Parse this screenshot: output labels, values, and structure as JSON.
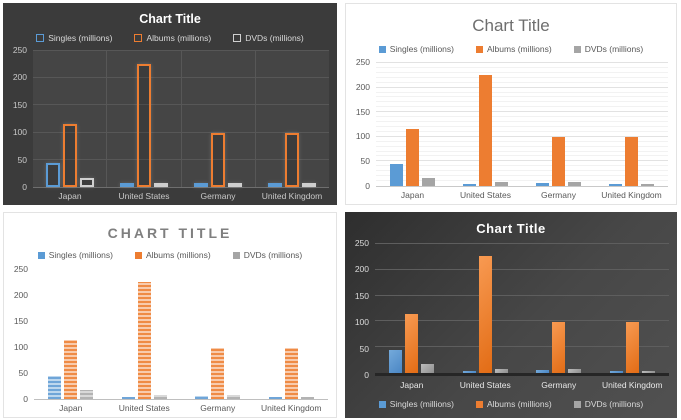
{
  "colors": {
    "singles": "#5B9BD5",
    "albums": "#ED7D31",
    "dvds": "#A5A5A5",
    "dark_theme_bg": "#3B3B3B",
    "dark_gradient_bg": "#474747",
    "light_title_text": "#6E6E6E",
    "caps_title_text": "#7F7F7F"
  },
  "chart_data": [
    {
      "type": "bar",
      "style_variant": "dark-outline",
      "title": "Chart Title",
      "legend_position": "top",
      "legend": [
        "Singles (millions)",
        "Albums (millions)",
        "DVDs (millions)"
      ],
      "categories": [
        "Japan",
        "United States",
        "Germany",
        "United Kingdom"
      ],
      "series": [
        {
          "key": "singles",
          "name": "Singles (millions)",
          "values": [
            44,
            1,
            6,
            3
          ]
        },
        {
          "key": "albums",
          "name": "Albums (millions)",
          "values": [
            115,
            226,
            99,
            99
          ]
        },
        {
          "key": "dvds",
          "name": "DVDs (millions)",
          "values": [
            17,
            8,
            8,
            3
          ]
        }
      ],
      "xlabel": "",
      "ylabel": "",
      "ylim": [
        0,
        250
      ],
      "yticks": [
        0,
        50,
        100,
        150,
        200,
        250
      ],
      "grid": "major-horizontal-and-vertical",
      "minor_grid": false
    },
    {
      "type": "bar",
      "style_variant": "light-default",
      "title": "Chart Title",
      "legend_position": "top",
      "legend": [
        "Singles (millions)",
        "Albums (millions)",
        "DVDs (millions)"
      ],
      "categories": [
        "Japan",
        "United States",
        "Germany",
        "United Kingdom"
      ],
      "series": [
        {
          "key": "singles",
          "name": "Singles (millions)",
          "values": [
            44,
            1,
            6,
            3
          ]
        },
        {
          "key": "albums",
          "name": "Albums (millions)",
          "values": [
            115,
            226,
            99,
            99
          ]
        },
        {
          "key": "dvds",
          "name": "DVDs (millions)",
          "values": [
            17,
            8,
            8,
            3
          ]
        }
      ],
      "xlabel": "",
      "ylabel": "",
      "ylim": [
        0,
        250
      ],
      "yticks": [
        0,
        50,
        100,
        150,
        200,
        250
      ],
      "grid": "major-horizontal",
      "minor_grid": true
    },
    {
      "type": "bar",
      "style_variant": "light-caps-striped",
      "title": "CHART TITLE",
      "legend_position": "top",
      "legend": [
        "Singles (millions)",
        "Albums (millions)",
        "DVDs (millions)"
      ],
      "categories": [
        "Japan",
        "United States",
        "Germany",
        "United Kingdom"
      ],
      "series": [
        {
          "key": "singles",
          "name": "Singles (millions)",
          "values": [
            44,
            1,
            6,
            3
          ]
        },
        {
          "key": "albums",
          "name": "Albums (millions)",
          "values": [
            115,
            226,
            99,
            99
          ]
        },
        {
          "key": "dvds",
          "name": "DVDs (millions)",
          "values": [
            17,
            8,
            8,
            3
          ]
        }
      ],
      "xlabel": "",
      "ylabel": "",
      "ylim": [
        0,
        250
      ],
      "yticks": [
        0,
        50,
        100,
        150,
        200,
        250
      ],
      "grid": "none",
      "minor_grid": false
    },
    {
      "type": "bar",
      "style_variant": "dark-gradient",
      "title": "Chart Title",
      "legend_position": "bottom",
      "legend": [
        "Singles (millions)",
        "Albums (millions)",
        "DVDs (millions)"
      ],
      "categories": [
        "Japan",
        "United States",
        "Germany",
        "United Kingdom"
      ],
      "series": [
        {
          "key": "singles",
          "name": "Singles (millions)",
          "values": [
            44,
            1,
            6,
            3
          ]
        },
        {
          "key": "albums",
          "name": "Albums (millions)",
          "values": [
            115,
            226,
            99,
            99
          ]
        },
        {
          "key": "dvds",
          "name": "DVDs (millions)",
          "values": [
            17,
            8,
            8,
            3
          ]
        }
      ],
      "xlabel": "",
      "ylabel": "",
      "ylim": [
        0,
        250
      ],
      "yticks": [
        0,
        50,
        100,
        150,
        200,
        250
      ],
      "grid": "major-horizontal",
      "minor_grid": false
    }
  ]
}
